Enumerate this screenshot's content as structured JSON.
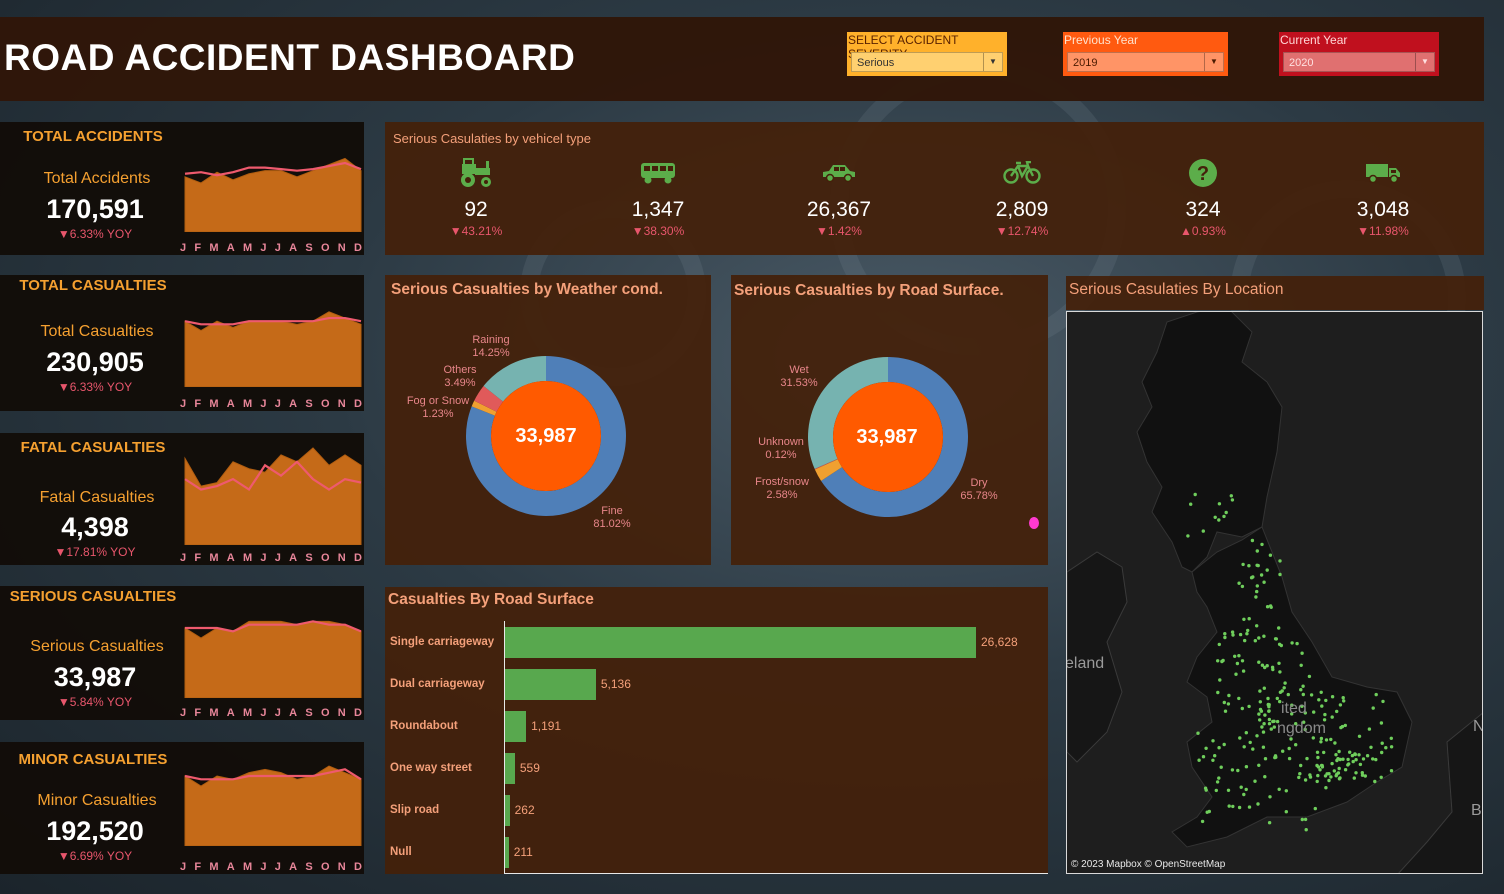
{
  "header": {
    "title": "ROAD ACCIDENT DASHBOARD",
    "filters": [
      {
        "label": "SELECT ACCIDENT SEVERITY",
        "value": "Serious",
        "color": "#ffb12b"
      },
      {
        "label": "Previous Year",
        "value": "2019",
        "color": "#ff5a10"
      },
      {
        "label": "Current Year",
        "value": "2020",
        "color": "#c0101e"
      }
    ]
  },
  "months": [
    "J",
    "F",
    "M",
    "A",
    "M",
    "J",
    "J",
    "A",
    "S",
    "O",
    "N",
    "D"
  ],
  "kpis": [
    {
      "title": "TOTAL ACCIDENTS",
      "label": "Total Accidents",
      "value": "170,591",
      "yoy": "▼6.33% YOY",
      "current": [
        76,
        72,
        79,
        74,
        78,
        80,
        80,
        76,
        80,
        84,
        88,
        80
      ],
      "previous": [
        78,
        79,
        77,
        79,
        82,
        82,
        81,
        80,
        81,
        83,
        85,
        81
      ]
    },
    {
      "title": "TOTAL CASUALTIES",
      "label": "Total Casualties",
      "value": "230,905",
      "yoy": "▼6.33% YOY",
      "current": [
        82,
        76,
        82,
        78,
        82,
        82,
        82,
        80,
        82,
        88,
        84,
        80
      ],
      "previous": [
        82,
        80,
        80,
        80,
        82,
        82,
        82,
        82,
        82,
        84,
        84,
        82
      ]
    },
    {
      "title": "FATAL CASUALTIES",
      "label": "Fatal Casualties",
      "value": "4,398",
      "yoy": "▼17.81% YOY",
      "current": [
        90,
        74,
        76,
        88,
        84,
        82,
        92,
        88,
        96,
        86,
        92,
        86
      ],
      "previous": [
        78,
        72,
        74,
        78,
        72,
        86,
        80,
        88,
        78,
        72,
        78,
        76
      ]
    },
    {
      "title": "SERIOUS CASUALTIES",
      "label": "Serious Casualties",
      "value": "33,987",
      "yoy": "▼5.84% YOY",
      "current": [
        82,
        76,
        82,
        80,
        86,
        86,
        86,
        84,
        86,
        86,
        84,
        80
      ],
      "previous": [
        82,
        82,
        82,
        80,
        84,
        84,
        84,
        84,
        86,
        84,
        84,
        80
      ]
    },
    {
      "title": "MINOR CASUALTIES",
      "label": "Minor Casualties",
      "value": "192,520",
      "yoy": "▼6.69% YOY",
      "current": [
        82,
        76,
        82,
        80,
        84,
        86,
        84,
        80,
        82,
        88,
        84,
        80
      ],
      "previous": [
        82,
        80,
        80,
        80,
        82,
        82,
        82,
        82,
        82,
        84,
        86,
        80
      ]
    }
  ],
  "vehicle": {
    "title": "Serious Casulaties by vehicel type",
    "items": [
      {
        "icon": "tractor-icon",
        "value": "92",
        "change": "▼43.21%"
      },
      {
        "icon": "bus-icon",
        "value": "1,347",
        "change": "▼38.30%"
      },
      {
        "icon": "car-icon",
        "value": "26,367",
        "change": "▼1.42%"
      },
      {
        "icon": "bicycle-icon",
        "value": "2,809",
        "change": "▼12.74%"
      },
      {
        "icon": "question-icon",
        "value": "324",
        "change": "▲0.93%"
      },
      {
        "icon": "truck-icon",
        "value": "3,048",
        "change": "▼11.98%"
      }
    ]
  },
  "weather": {
    "title": "Serious Casualties by Weather cond.",
    "center": "33,987",
    "slices": [
      {
        "name": "Fine",
        "pct": "81.02%",
        "value": 81.02,
        "color": "#4f7fb8"
      },
      {
        "name": "Fog or Snow",
        "pct": "1.23%",
        "value": 1.23,
        "color": "#f0a030"
      },
      {
        "name": "Others",
        "pct": "3.49%",
        "value": 3.49,
        "color": "#e05a5a"
      },
      {
        "name": "Raining",
        "pct": "14.25%",
        "value": 14.25,
        "color": "#76b3b0"
      }
    ]
  },
  "road_surface_donut": {
    "title": "Serious Casualties by Road Surface.",
    "center": "33,987",
    "slices": [
      {
        "name": "Dry",
        "pct": "65.78%",
        "value": 65.78,
        "color": "#4f7fb8"
      },
      {
        "name": "Frost/snow",
        "pct": "2.58%",
        "value": 2.58,
        "color": "#f0a030"
      },
      {
        "name": "Unknown",
        "pct": "0.12%",
        "value": 0.12,
        "color": "#e05a5a"
      },
      {
        "name": "Wet",
        "pct": "31.53%",
        "value": 31.53,
        "color": "#76b3b0"
      }
    ]
  },
  "location": {
    "title": "Serious Casulaties By Location",
    "map_labels": [
      "eland",
      "ited",
      "ngdom",
      "N",
      "B"
    ],
    "credit": "© 2023 Mapbox © OpenStreetMap"
  },
  "chart_data": {
    "type": "bar",
    "title": "Casualties By Road Surface",
    "categories": [
      "Single carriageway",
      "Dual carriageway",
      "Roundabout",
      "One way street",
      "Slip road",
      "Null"
    ],
    "values": [
      26628,
      5136,
      1191,
      559,
      262,
      211
    ],
    "labels": [
      "26,628",
      "5,136",
      "1,191",
      "559",
      "262",
      "211"
    ],
    "color": "#58a84e"
  }
}
